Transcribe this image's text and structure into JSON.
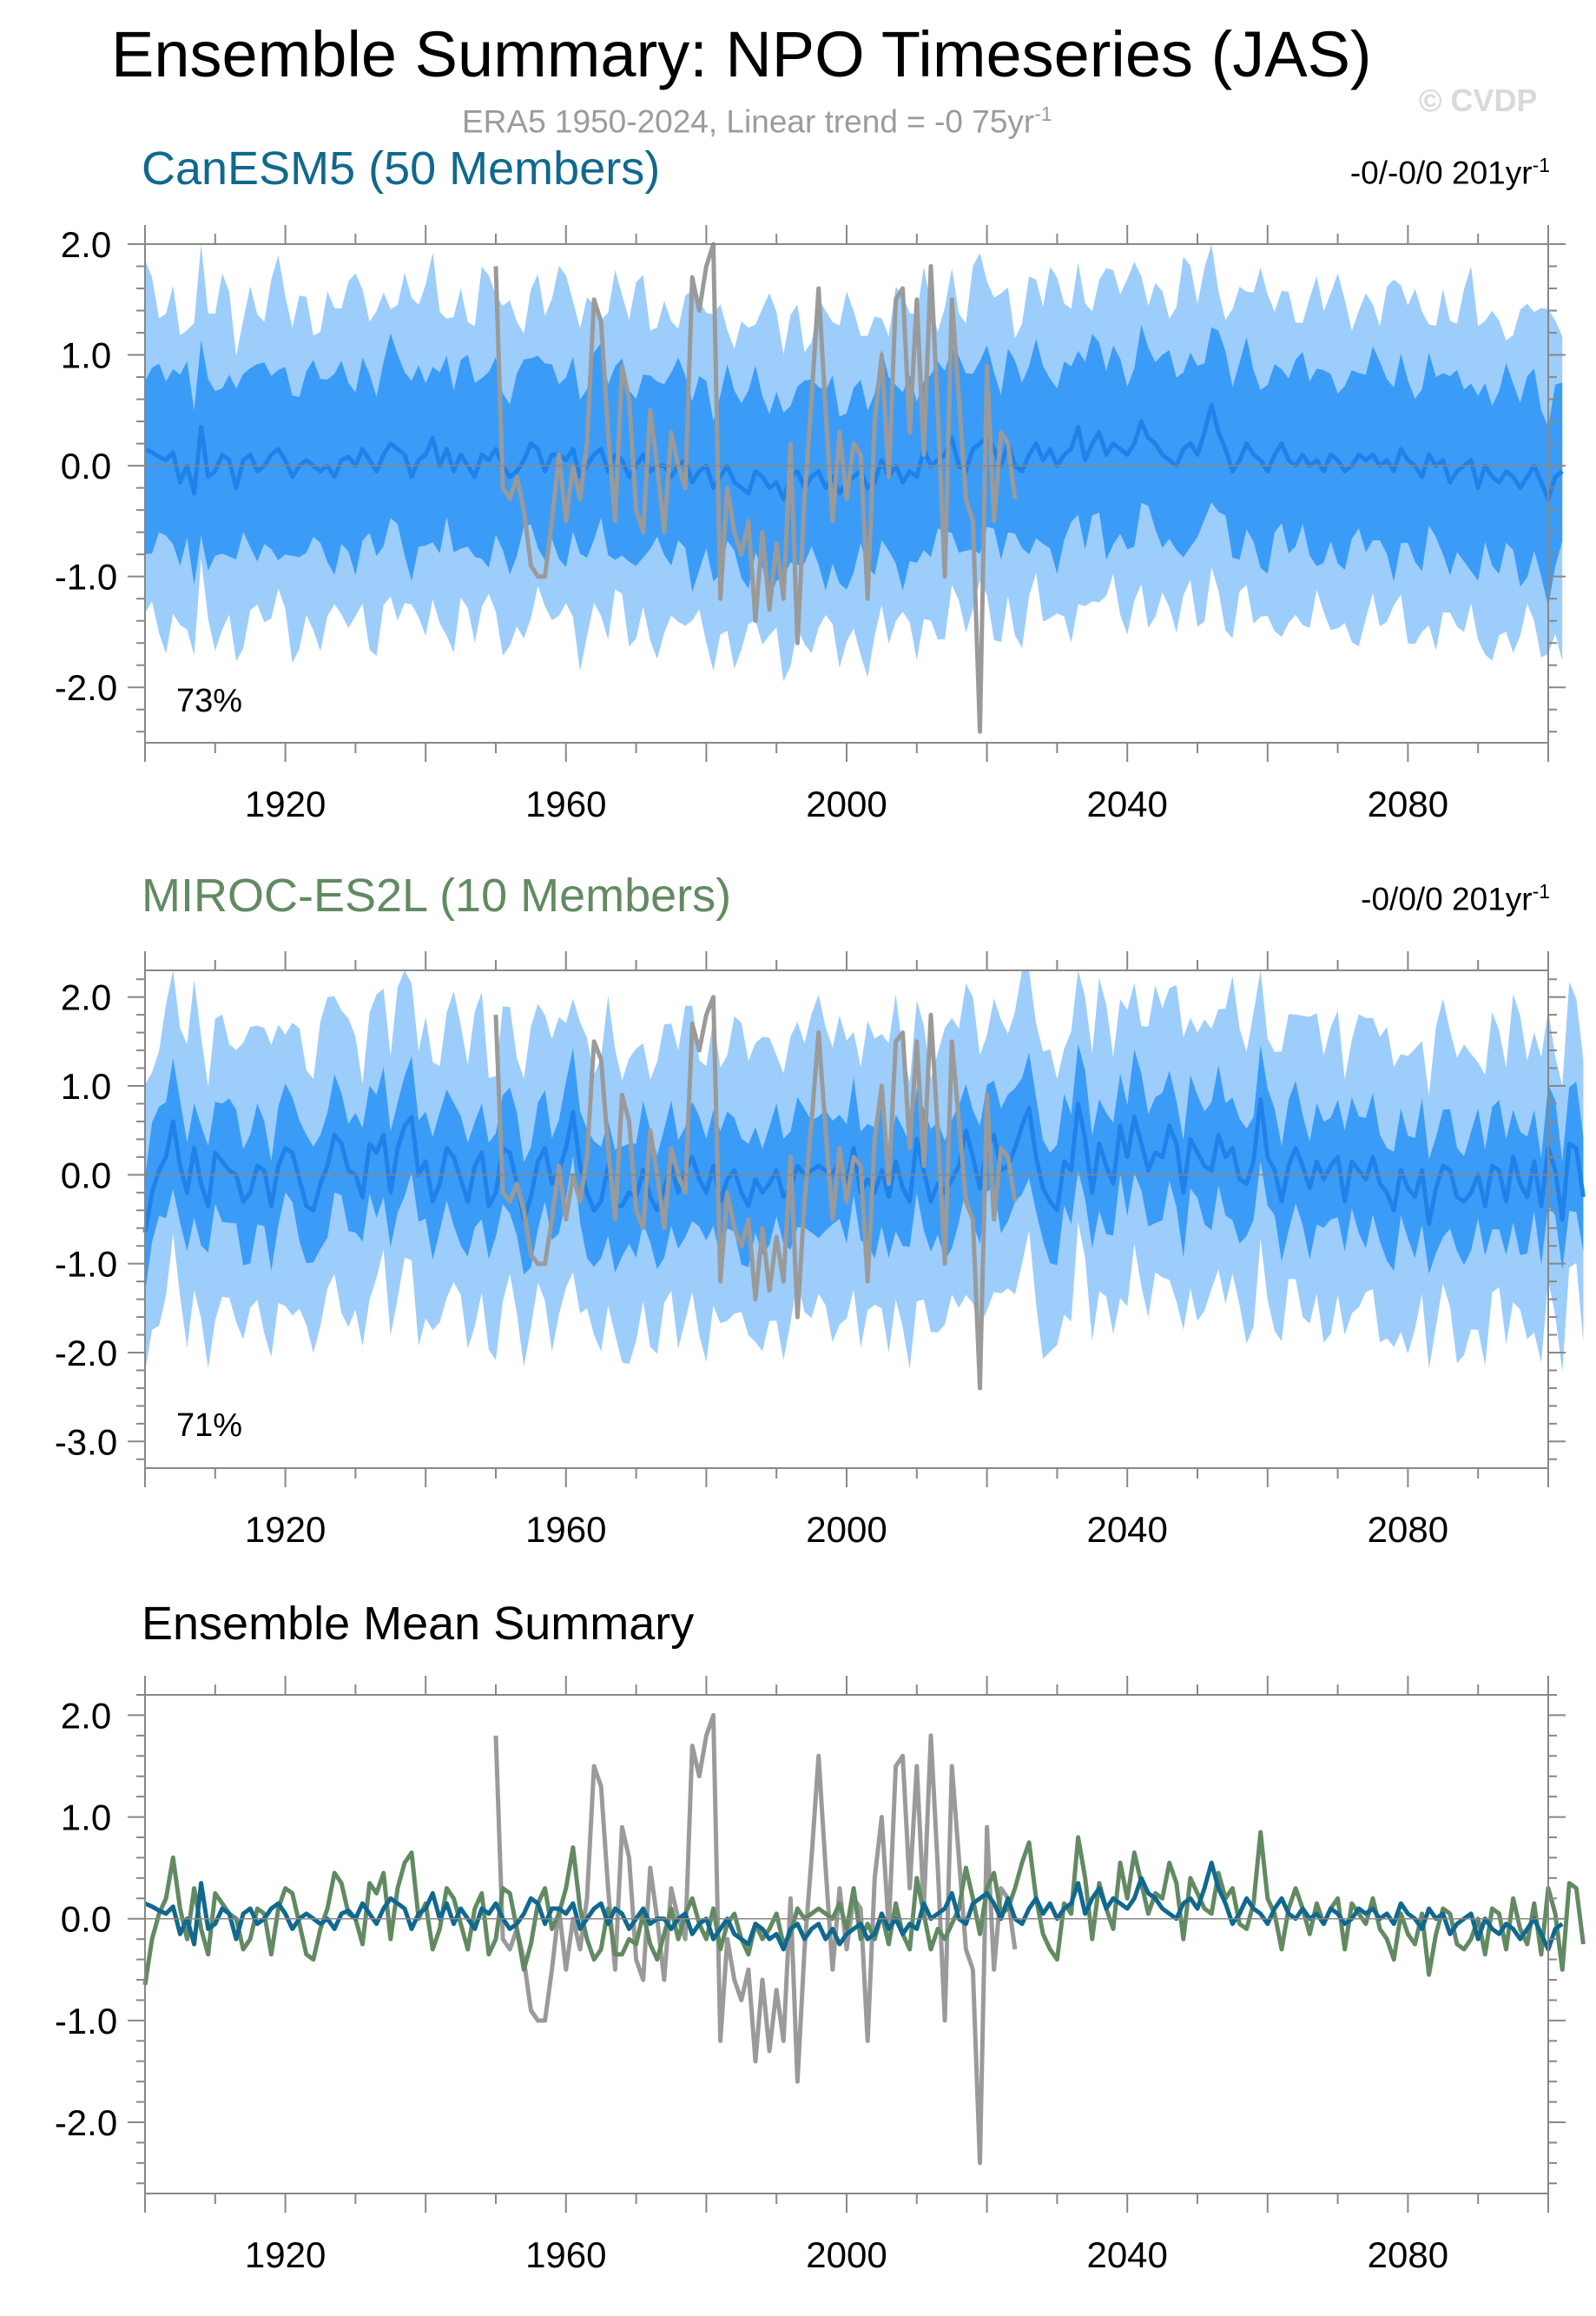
{
  "header": {
    "title": "Ensemble Summary: NPO Timeseries (JAS)",
    "subtitle_main": "ERA5 1950-2024, Linear trend = -0 75yr",
    "subtitle_sup": "-1",
    "watermark": "© CVDP"
  },
  "panels": [
    {
      "title": "CanESM5 (50 Members)",
      "trend_main": "-0/-0/0 201yr",
      "trend_sup": "-1",
      "percent": "73%"
    },
    {
      "title": "MIROC-ES2L (10 Members)",
      "trend_main": "-0/0/0 201yr",
      "trend_sup": "-1",
      "percent": "71%"
    },
    {
      "title": "Ensemble Mean Summary"
    }
  ],
  "colors": {
    "canesm": "#11688f",
    "miroc": "#628a62",
    "obs": "#9a9a9a",
    "band_outer": "#9dcdfb",
    "band_inner": "#3b9cf7",
    "ens_mean_line": "#1f82ea"
  },
  "chart_data": [
    {
      "type": "area",
      "title": "CanESM5 (50 Members)",
      "x_start": 1900,
      "x_end": 2100,
      "xlim": [
        1900,
        2100
      ],
      "ylim": [
        -2.5,
        2.0
      ],
      "xticks": [
        1920,
        1960,
        2000,
        2040,
        2080
      ],
      "xtick_labels": [
        "1920",
        "1960",
        "2000",
        "2040",
        "2080"
      ],
      "yticks": [
        2.0,
        1.0,
        0.0,
        -1.0,
        -2.0
      ],
      "ytick_labels": [
        "2.0",
        "1.0",
        "0.0",
        "-1.0",
        "-2.0"
      ],
      "ens_mean": [
        0.15,
        0.12,
        0.08,
        0.05,
        0.12,
        -0.15,
        0.0,
        -0.25,
        0.35,
        -0.1,
        -0.05,
        0.1,
        0.05,
        -0.2,
        0.05,
        0.1,
        -0.05,
        0.0,
        0.1,
        0.15,
        0.05,
        -0.1,
        0.0,
        0.05,
        0.0,
        -0.05,
        0.0,
        -0.1,
        0.05,
        0.08,
        0.0,
        0.15,
        0.05,
        -0.05,
        0.1,
        0.2,
        0.15,
        0.1,
        -0.1,
        0.05,
        0.1,
        0.25,
        0.0,
        0.15,
        -0.05,
        0.1,
        0.0,
        -0.1,
        0.1,
        0.05,
        0.15,
        0.0,
        -0.1,
        -0.05,
        0.05,
        0.2,
        0.15,
        -0.05,
        0.1,
        0.1,
        0.05,
        0.15,
        -0.1,
        0.0,
        0.1,
        0.15,
        -0.05,
        0.1,
        0.05,
        -0.1,
        0.0,
        0.1,
        -0.05,
        0.0,
        0.0,
        -0.1,
        0.0,
        0.05,
        -0.15,
        -0.05,
        0.0,
        -0.2,
        -0.1,
        0.0,
        -0.15,
        -0.2,
        -0.25,
        -0.05,
        -0.1,
        -0.2,
        -0.15,
        -0.3,
        -0.1,
        -0.05,
        -0.2,
        -0.1,
        -0.05,
        -0.2,
        -0.1,
        -0.25,
        -0.15,
        -0.1,
        -0.05,
        -0.2,
        -0.15,
        0.05,
        -0.1,
        0.0,
        -0.15,
        -0.05,
        -0.1,
        0.15,
        0.0,
        0.05,
        0.1,
        0.25,
        0.0,
        -0.05,
        0.15,
        0.2,
        0.25,
        0.15,
        0.0,
        0.2,
        0.0,
        -0.05,
        0.1,
        0.2,
        0.05,
        0.15,
        0.0,
        0.1,
        0.15,
        0.35,
        0.05,
        0.2,
        0.3,
        0.1,
        0.2,
        0.15,
        0.1,
        0.2,
        0.4,
        0.25,
        0.2,
        0.1,
        0.05,
        0.0,
        0.15,
        0.2,
        0.1,
        0.3,
        0.55,
        0.3,
        0.15,
        -0.05,
        0.05,
        0.2,
        0.1,
        0.05,
        -0.05,
        0.1,
        0.2,
        0.05,
        0.0,
        0.1,
        0.0,
        0.05,
        -0.05,
        0.1,
        0.05,
        -0.05,
        0.0,
        0.1,
        0.05,
        0.1,
        0.0,
        0.05,
        -0.05,
        0.15,
        0.05,
        0.0,
        -0.1,
        0.1,
        0.0,
        0.05,
        -0.15,
        -0.05,
        0.0,
        0.05,
        -0.2,
        0.0,
        -0.1,
        -0.15,
        -0.05,
        -0.1,
        -0.2,
        -0.1,
        0.0,
        -0.15,
        -0.3,
        -0.1,
        -0.05
      ],
      "inner_halfwidth": 0.8,
      "outer_halfwidth": 1.45,
      "obs_label": "ERA5 1950-2024",
      "obs_start": 1950,
      "obs": [
        1.8,
        -0.2,
        -0.3,
        -0.1,
        -0.4,
        -0.9,
        -1.0,
        -1.0,
        -0.5,
        0.1,
        -0.5,
        0.0,
        -0.3,
        0.2,
        1.5,
        1.3,
        0.3,
        -0.5,
        0.9,
        0.6,
        -0.4,
        -0.6,
        0.5,
        0.0,
        -0.6,
        0.3,
        0.0,
        -0.2,
        1.7,
        1.4,
        1.8,
        2.0,
        -1.2,
        -0.2,
        -0.6,
        -0.8,
        -0.5,
        -1.4,
        -0.6,
        -1.3,
        -0.7,
        -1.2,
        0.2,
        -1.6,
        -0.3,
        0.6,
        1.6,
        0.5,
        -0.5,
        0.3,
        -0.3,
        0.2,
        0.1,
        -1.2,
        0.4,
        1.0,
        -0.1,
        1.5,
        1.6,
        0.3,
        1.5,
        0.1,
        1.8,
        0.5,
        -1.0,
        1.5,
        0.6,
        -0.3,
        -0.5,
        -2.4,
        0.9,
        -0.5,
        0.3,
        0.2,
        -0.3
      ]
    },
    {
      "type": "area",
      "title": "MIROC-ES2L (10 Members)",
      "x_start": 1900,
      "x_end": 2100,
      "xlim": [
        1900,
        2100
      ],
      "ylim": [
        -3.3,
        2.3
      ],
      "xticks": [
        1920,
        1960,
        2000,
        2040,
        2080
      ],
      "xtick_labels": [
        "1920",
        "1960",
        "2000",
        "2040",
        "2080"
      ],
      "yticks": [
        2.0,
        1.0,
        0.0,
        -1.0,
        -2.0,
        -3.0
      ],
      "ytick_labels": [
        "2.0",
        "1.0",
        "0.0",
        "-1.0",
        "-2.0",
        "-3.0"
      ],
      "ens_mean": [
        -0.65,
        -0.2,
        0.05,
        0.2,
        0.6,
        0.1,
        -0.2,
        0.3,
        -0.1,
        -0.35,
        0.25,
        0.15,
        0.05,
        0.0,
        -0.3,
        -0.2,
        0.1,
        0.05,
        -0.35,
        0.1,
        0.3,
        0.25,
        -0.05,
        -0.35,
        -0.4,
        -0.1,
        0.1,
        0.45,
        0.35,
        0.05,
        0.0,
        -0.25,
        0.35,
        0.25,
        0.45,
        -0.2,
        0.3,
        0.55,
        0.65,
        0.0,
        0.15,
        -0.3,
        -0.1,
        0.3,
        0.2,
        -0.05,
        -0.3,
        0.1,
        0.25,
        -0.35,
        -0.2,
        0.3,
        0.25,
        -0.1,
        -0.5,
        -0.25,
        0.15,
        0.3,
        -0.1,
        0.05,
        0.3,
        0.7,
        0.1,
        -0.2,
        -0.4,
        -0.3,
        0.1,
        -0.35,
        -0.35,
        -0.2,
        -0.25,
        0.05,
        -0.25,
        -0.4,
        -0.15,
        0.1,
        -0.2,
        0.05,
        0.2,
        -0.05,
        -0.2,
        0.1,
        -0.3,
        -0.05,
        0.05,
        -0.2,
        -0.35,
        -0.05,
        -0.2,
        -0.1,
        0.05,
        -0.25,
        -0.15,
        0.1,
        0.0,
        0.05,
        0.1,
        0.05,
        0.0,
        0.15,
        -0.1,
        0.3,
        -0.2,
        -0.05,
        -0.2,
        0.05,
        -0.25,
        0.15,
        -0.15,
        -0.3,
        0.4,
        0.05,
        -0.3,
        -0.1,
        -0.2,
        -0.05,
        0.1,
        0.5,
        0.2,
        -0.15,
        0.3,
        0.45,
        0.05,
        0.1,
        0.3,
        0.55,
        0.75,
        0.2,
        -0.15,
        -0.3,
        -0.4,
        0.15,
        0.05,
        0.8,
        0.4,
        -0.2,
        0.35,
        0.1,
        -0.1,
        0.55,
        0.2,
        0.65,
        0.35,
        0.05,
        0.25,
        0.2,
        0.55,
        0.35,
        -0.2,
        0.4,
        0.25,
        0.1,
        0.05,
        0.45,
        0.2,
        0.3,
        -0.05,
        -0.1,
        0.15,
        0.85,
        0.2,
        0.05,
        -0.3,
        0.1,
        0.3,
        0.1,
        -0.15,
        0.15,
        -0.05,
        0.1,
        0.2,
        -0.3,
        0.15,
        0.05,
        -0.05,
        0.2,
        -0.1,
        -0.2,
        -0.4,
        0.05,
        -0.15,
        -0.25,
        0.05,
        -0.55,
        -0.15,
        0.1,
        0.05,
        -0.25,
        -0.3,
        -0.2,
        0.0,
        -0.35,
        0.1,
        0.05,
        -0.3,
        0.2,
        -0.1,
        -0.25,
        0.15,
        -0.35,
        0.3,
        0.05,
        -0.5,
        0.35,
        0.3,
        -0.25
      ],
      "inner_halfwidth": 0.65,
      "outer_halfwidth": 1.6,
      "obs_label": "ERA5 1950-2024",
      "obs_start": 1950,
      "obs": [
        1.8,
        -0.2,
        -0.3,
        -0.1,
        -0.4,
        -0.9,
        -1.0,
        -1.0,
        -0.5,
        0.1,
        -0.5,
        0.0,
        -0.3,
        0.2,
        1.5,
        1.3,
        0.3,
        -0.5,
        0.9,
        0.6,
        -0.4,
        -0.6,
        0.5,
        0.0,
        -0.6,
        0.3,
        0.0,
        -0.2,
        1.7,
        1.4,
        1.8,
        2.0,
        -1.2,
        -0.2,
        -0.6,
        -0.8,
        -0.5,
        -1.4,
        -0.6,
        -1.3,
        -0.7,
        -1.2,
        0.2,
        -1.6,
        -0.3,
        0.6,
        1.6,
        0.5,
        -0.5,
        0.3,
        -0.3,
        0.2,
        0.1,
        -1.2,
        0.4,
        1.0,
        -0.1,
        1.5,
        1.6,
        0.3,
        1.5,
        0.1,
        1.8,
        0.5,
        -1.0,
        1.5,
        0.6,
        -0.3,
        -0.5,
        -2.4,
        0.9,
        -0.5,
        0.3,
        0.2,
        -0.3
      ]
    },
    {
      "type": "line",
      "title": "Ensemble Mean Summary",
      "xlim": [
        1900,
        2100
      ],
      "ylim": [
        -2.7,
        2.2
      ],
      "xticks": [
        1920,
        1960,
        2000,
        2040,
        2080
      ],
      "xtick_labels": [
        "1920",
        "1960",
        "2000",
        "2040",
        "2080"
      ],
      "yticks": [
        2.0,
        1.0,
        0.0,
        -1.0,
        -2.0
      ],
      "ytick_labels": [
        "2.0",
        "1.0",
        "0.0",
        "-1.0",
        "-2.0"
      ],
      "series": [
        {
          "name": "ERA5",
          "source": "obs"
        },
        {
          "name": "CanESM5",
          "source": "panel0"
        },
        {
          "name": "MIROC-ES2L",
          "source": "panel1"
        }
      ]
    }
  ]
}
